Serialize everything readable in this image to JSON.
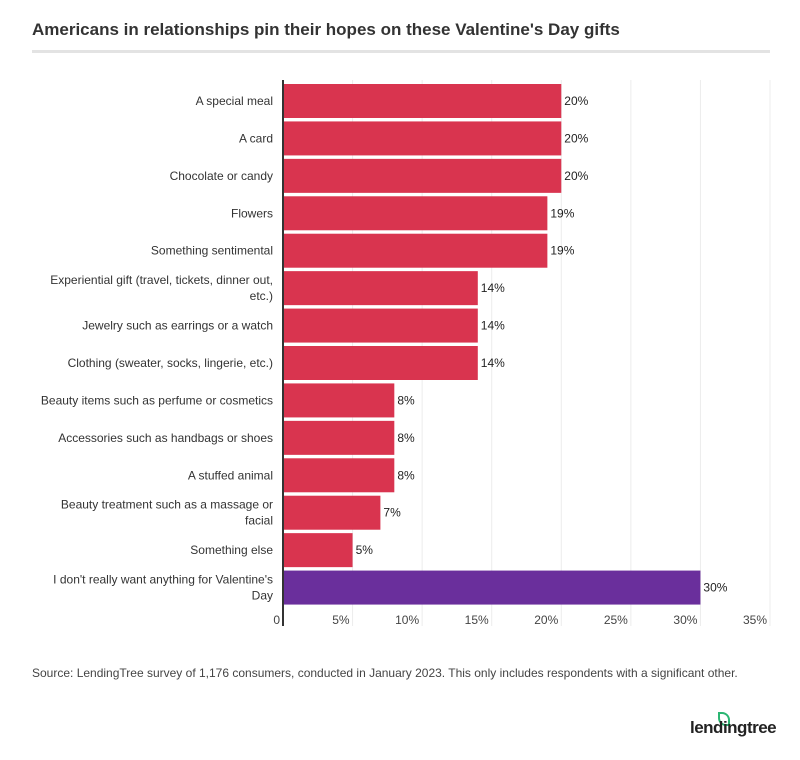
{
  "title": "Americans in relationships pin their hopes on these Valentine's Day gifts",
  "source": "Source: LendingTree survey of 1,176 consumers, conducted in January 2023. This only includes respondents with a significant other.",
  "logo": "lendingtree",
  "colors": {
    "primary": "#d9344f",
    "highlight": "#6a2f9c",
    "logo_leaf": "#2bb673"
  },
  "chart_data": {
    "type": "bar",
    "orientation": "horizontal",
    "title": "Americans in relationships pin their hopes on these Valentine's Day gifts",
    "categories": [
      [
        "A special meal"
      ],
      [
        "A card"
      ],
      [
        "Chocolate or candy"
      ],
      [
        "Flowers"
      ],
      [
        "Something sentimental"
      ],
      [
        "Experiential gift (travel, tickets, dinner out,",
        "etc.)"
      ],
      [
        "Jewelry such as earrings or a watch"
      ],
      [
        "Clothing (sweater, socks, lingerie, etc.)"
      ],
      [
        "Beauty items such as perfume or cosmetics"
      ],
      [
        "Accessories such as handbags or shoes"
      ],
      [
        "A stuffed animal"
      ],
      [
        "Beauty treatment such as a massage or",
        "facial"
      ],
      [
        "Something else"
      ],
      [
        "I don't really want anything for Valentine's",
        "Day"
      ]
    ],
    "values": [
      20,
      20,
      20,
      19,
      19,
      14,
      14,
      14,
      8,
      8,
      8,
      7,
      5,
      30
    ],
    "labels": [
      "20%",
      "20%",
      "20%",
      "19%",
      "19%",
      "14%",
      "14%",
      "14%",
      "8%",
      "8%",
      "8%",
      "7%",
      "5%",
      "30%"
    ],
    "highlighted_index": 13,
    "xlim": [
      0,
      35
    ],
    "xticks": [
      0,
      5,
      10,
      15,
      20,
      25,
      30,
      35
    ],
    "xtick_labels": [
      "0",
      "5%",
      "10%",
      "15%",
      "20%",
      "25%",
      "30%",
      "35%"
    ],
    "grid": "vertical",
    "xlabel": "",
    "ylabel": ""
  }
}
